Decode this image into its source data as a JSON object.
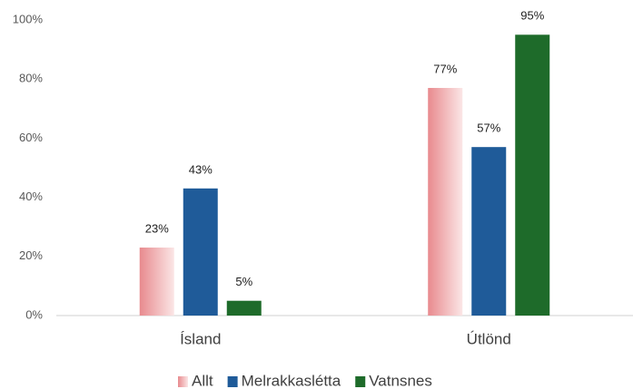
{
  "chart_data": {
    "type": "bar",
    "categories": [
      "Ísland",
      "Útlönd"
    ],
    "series": [
      {
        "name": "Allt",
        "color": "#e88a8e",
        "values": [
          23,
          77
        ],
        "value_labels": [
          "23%",
          "77%"
        ]
      },
      {
        "name": "Melrakkaslétta",
        "color": "#1f5b99",
        "values": [
          43,
          57
        ],
        "value_labels": [
          "43%",
          "57%"
        ]
      },
      {
        "name": "Vatnsnes",
        "color": "#1e6b2a",
        "values": [
          5,
          95
        ],
        "value_labels": [
          "5%",
          "95%"
        ]
      }
    ],
    "ylim": [
      0,
      100
    ],
    "yticks": [
      {
        "value": 0,
        "label": "0%"
      },
      {
        "value": 20,
        "label": "20%"
      },
      {
        "value": 40,
        "label": "40%"
      },
      {
        "value": 60,
        "label": "60%"
      },
      {
        "value": 80,
        "label": "80%"
      },
      {
        "value": 100,
        "label": "100%"
      }
    ],
    "grid": false,
    "legend": "bottom"
  }
}
